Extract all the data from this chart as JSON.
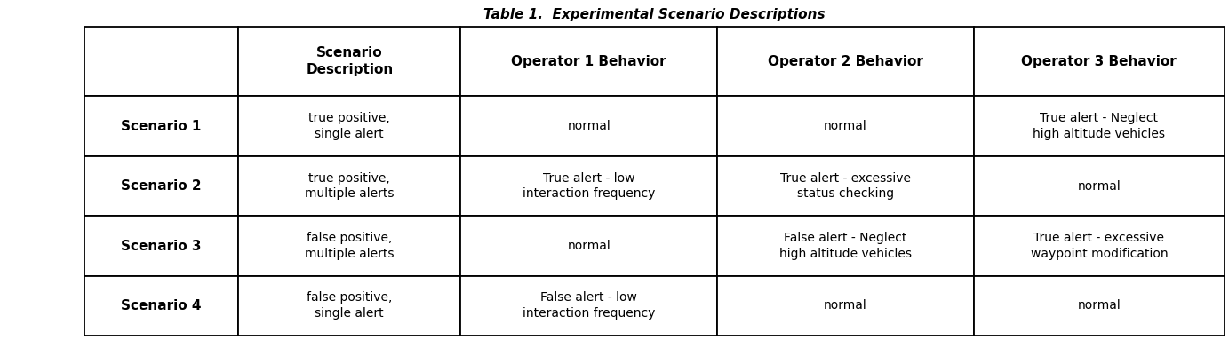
{
  "title": "Table 1.  Experimental Scenario Descriptions",
  "col_headers": [
    "Scenario\nDescription",
    "Operator 1 Behavior",
    "Operator 2 Behavior",
    "Operator 3 Behavior"
  ],
  "row_headers": [
    "Scenario 1",
    "Scenario 2",
    "Scenario 3",
    "Scenario 4"
  ],
  "cells": [
    [
      "true positive,\nsingle alert",
      "normal",
      "normal",
      "True alert - Neglect\nhigh altitude vehicles"
    ],
    [
      "true positive,\nmultiple alerts",
      "True alert - low\ninteraction frequency",
      "True alert - excessive\nstatus checking",
      "normal"
    ],
    [
      "false positive,\nmultiple alerts",
      "normal",
      "False alert - Neglect\nhigh altitude vehicles",
      "True alert - excessive\nwaypoint modification"
    ],
    [
      "false positive,\nsingle alert",
      "False alert - low\ninteraction frequency",
      "normal",
      "normal"
    ]
  ],
  "background_color": "#ffffff",
  "text_color": "#000000",
  "border_color": "#000000",
  "figsize": [
    13.83,
    3.83
  ],
  "dpi": 100,
  "title_fontsize": 11,
  "header_fontsize": 11,
  "cell_fontsize": 10,
  "row_header_fontsize": 11
}
